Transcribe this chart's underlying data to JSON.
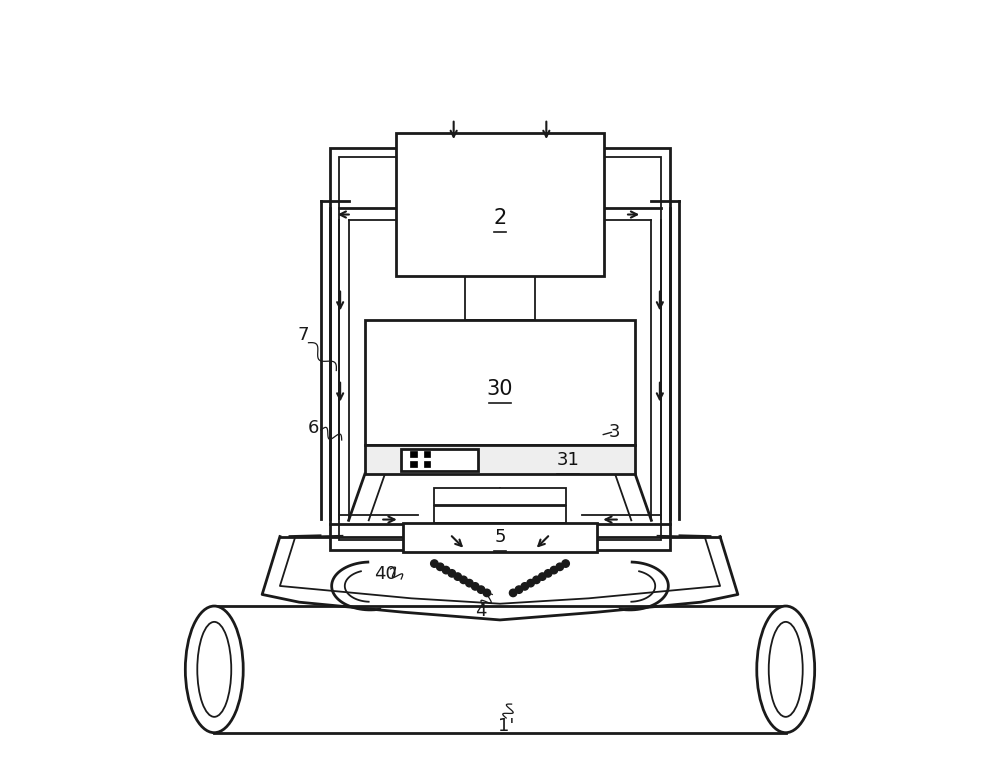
{
  "bg_color": "#ffffff",
  "line_color": "#1a1a1a",
  "label_color": "#111111",
  "fig_width": 10.0,
  "fig_height": 7.75
}
